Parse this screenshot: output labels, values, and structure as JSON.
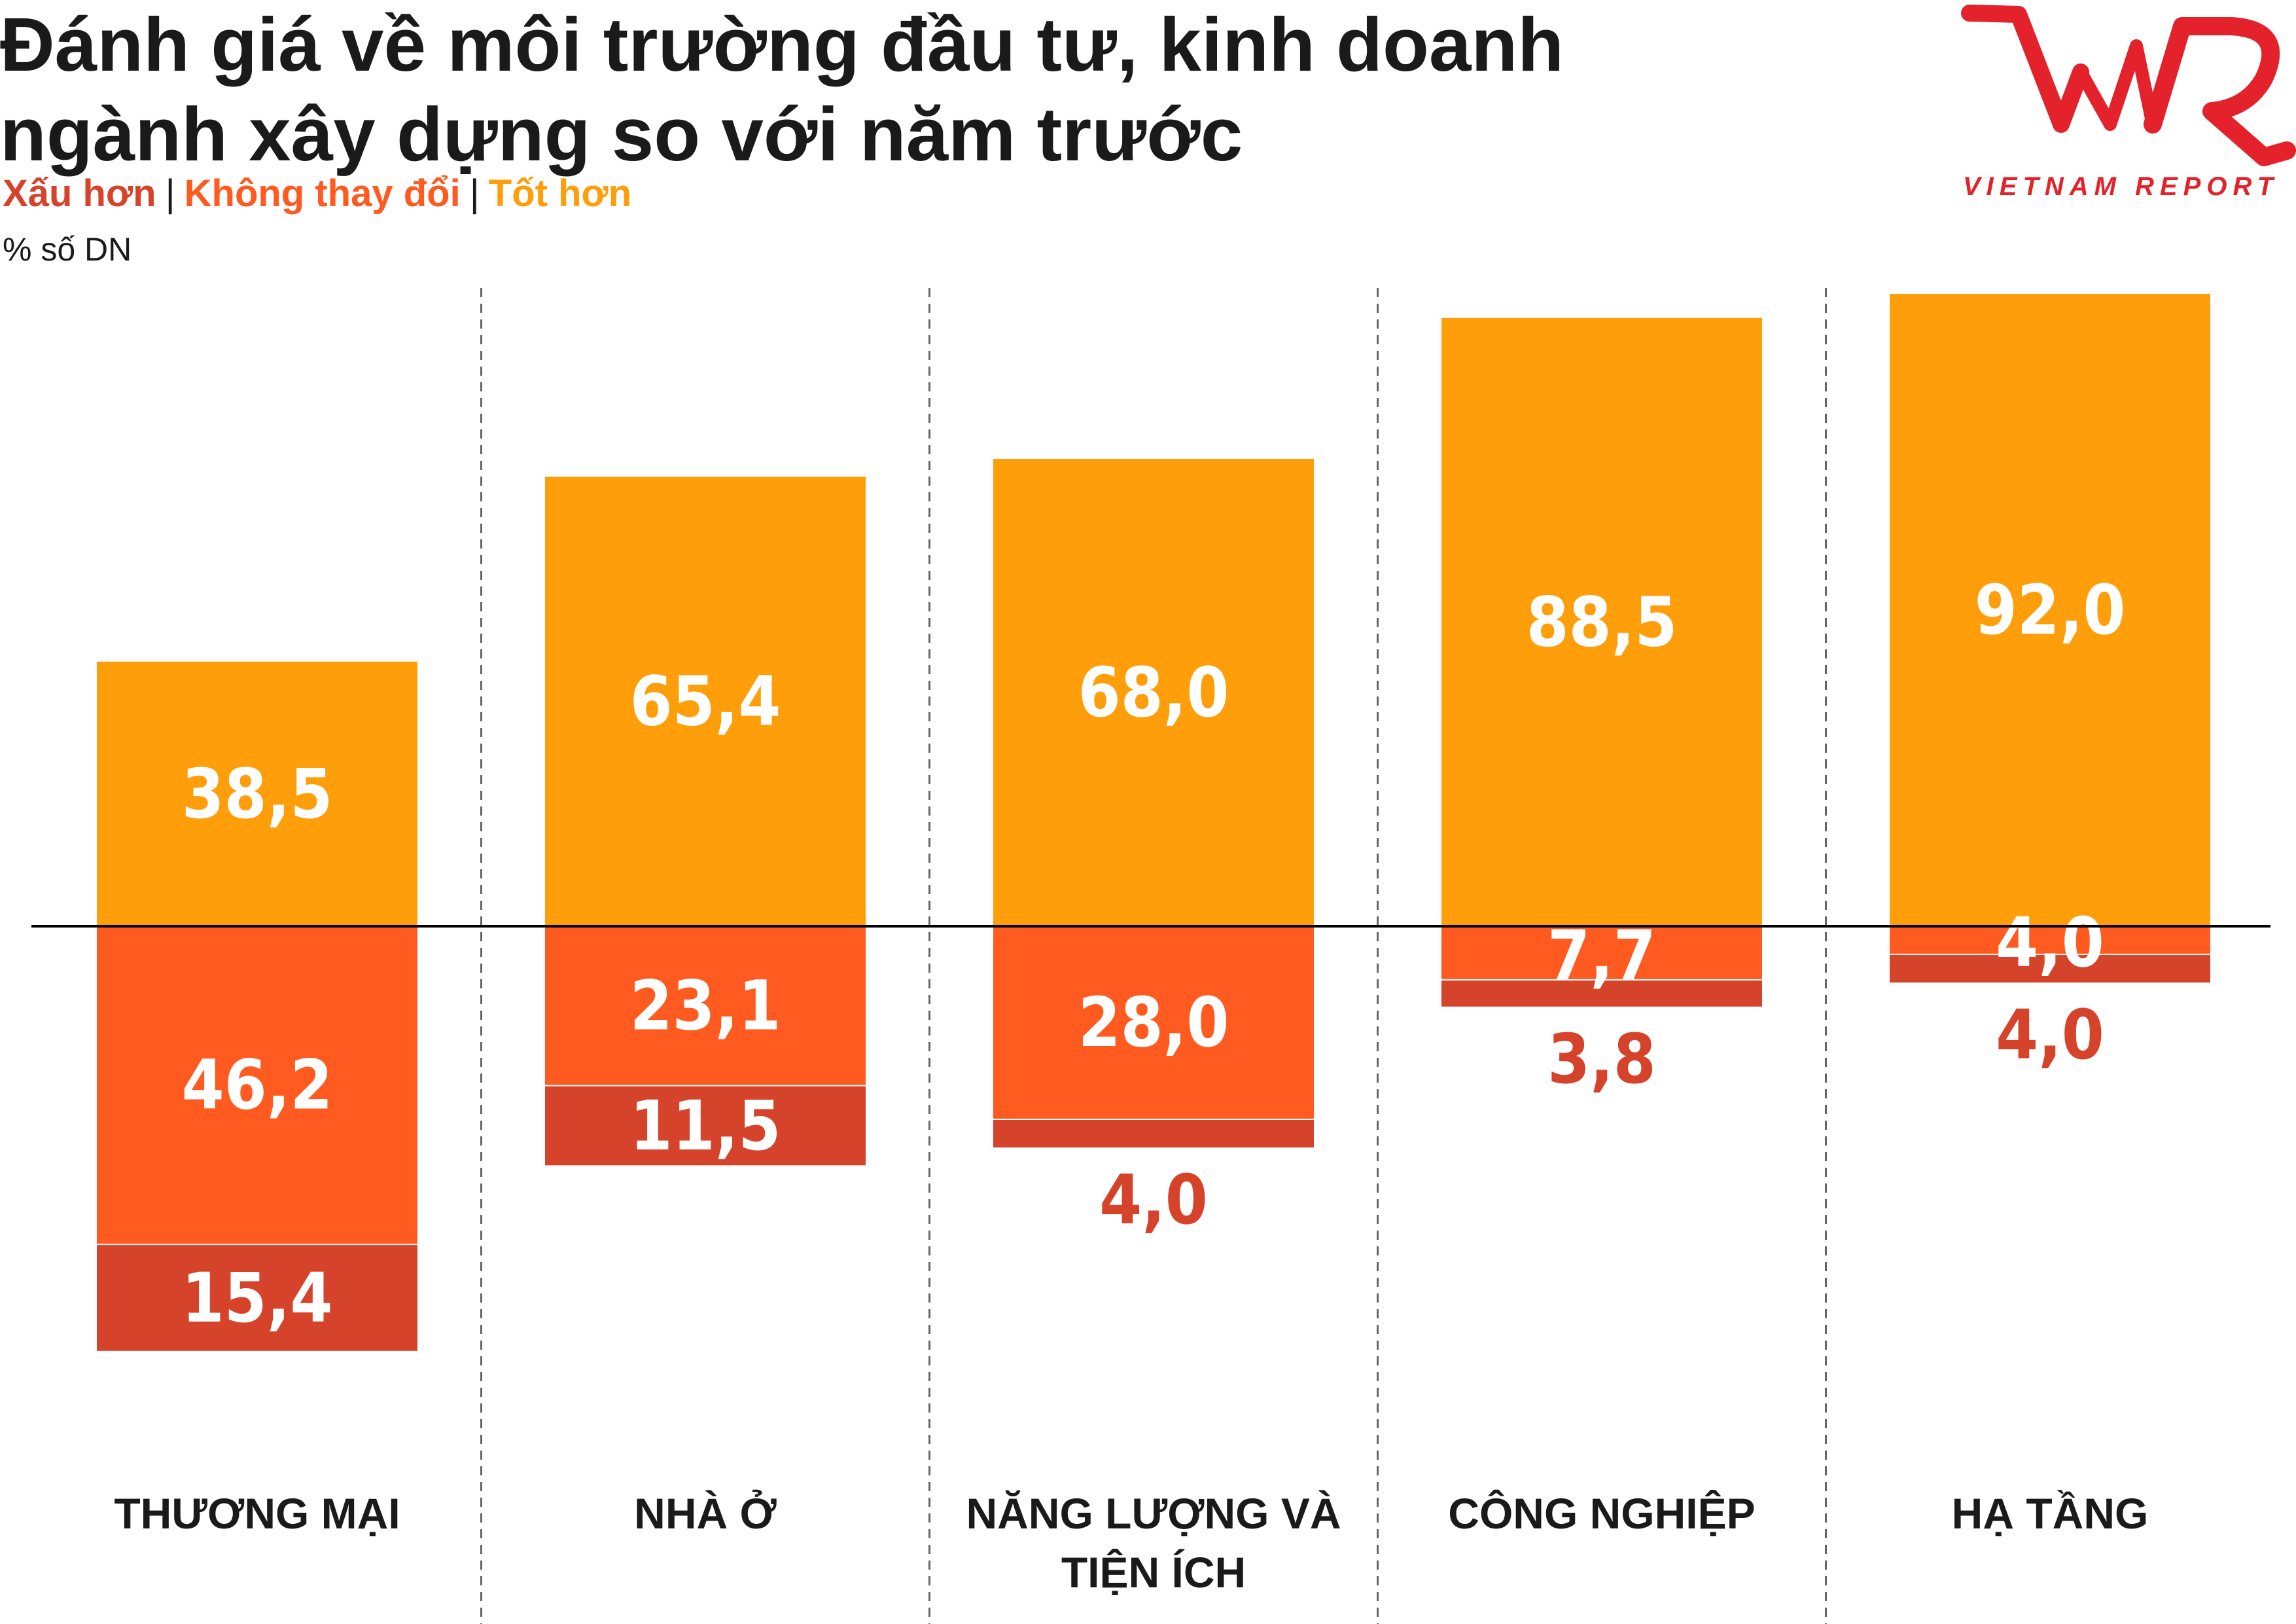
{
  "title_lines": [
    "Đánh giá về môi trường đầu tư, kinh doanh",
    "ngành xây dựng so với năm trước"
  ],
  "legend": [
    "Xấu hơn",
    "Không thay đổi",
    "Tốt hơn"
  ],
  "unit": "% số DN",
  "logo": {
    "text": "VIETNAM REPORT",
    "mark": "VNR"
  },
  "colors": {
    "better": "#FF9E0B",
    "unchanged": "#FF5A1F",
    "worse": "#D6432B",
    "legend_worse": "#D6432B",
    "legend_unchanged": "#FF5A1F",
    "legend_better": "#FF9E0B",
    "axis": "#000000",
    "logo": "#E3222B"
  },
  "chart_data": {
    "type": "bar",
    "stacking": "diverging",
    "categories": [
      [
        "THƯƠNG MẠI"
      ],
      [
        "NHÀ Ở"
      ],
      [
        "NĂNG LƯỢNG VÀ",
        "TIỆN ÍCH"
      ],
      [
        "CÔNG NGHIỆP"
      ],
      [
        "HẠ TẦNG"
      ]
    ],
    "series": [
      {
        "name": "Tốt hơn",
        "values": [
          38.5,
          65.4,
          68.0,
          88.5,
          92.0
        ],
        "labels": [
          "38,5",
          "65,4",
          "68,0",
          "88,5",
          "92,0"
        ]
      },
      {
        "name": "Không thay đổi",
        "values": [
          46.2,
          23.1,
          28.0,
          7.7,
          4.0
        ],
        "labels": [
          "46,2",
          "23,1",
          "28,0",
          "7,7",
          "4,0"
        ]
      },
      {
        "name": "Xấu hơn",
        "values": [
          15.4,
          11.5,
          4.0,
          3.8,
          4.0
        ],
        "labels": [
          "15,4",
          "11,5",
          "4,0",
          "3,8",
          "4,0"
        ]
      }
    ],
    "ylabel": "% số DN",
    "grid": false,
    "legend_position": "top-left"
  }
}
